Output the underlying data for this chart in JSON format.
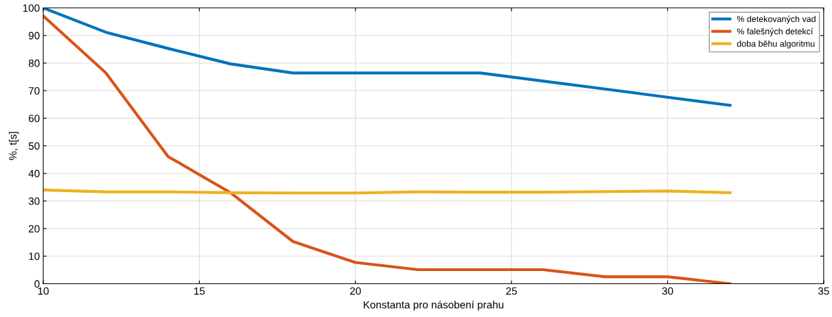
{
  "chart_data": {
    "type": "line",
    "xlabel": "Konstanta pro násobení prahu",
    "ylabel": "%, t[s]",
    "x": [
      10,
      12,
      14,
      16,
      18,
      20,
      22,
      24,
      26,
      28,
      30,
      32
    ],
    "series": [
      {
        "name": "% detekovaných vad",
        "color": "#0072bd",
        "values": [
          100,
          91.2,
          85.3,
          79.7,
          76.4,
          76.4,
          76.4,
          76.4,
          73.5,
          70.6,
          67.6,
          64.7
        ]
      },
      {
        "name": "% falešných detekcí",
        "color": "#d95319",
        "values": [
          97.1,
          76.5,
          46.1,
          33,
          15.3,
          7.7,
          5.1,
          5.1,
          5.1,
          2.5,
          2.5,
          0
        ]
      },
      {
        "name": "doba běhu algoritmu",
        "color": "#edb120",
        "values": [
          34,
          33.3,
          33.3,
          33,
          32.9,
          32.9,
          33.3,
          33.2,
          33.2,
          33.4,
          33.6,
          33
        ]
      }
    ],
    "xlim": [
      10,
      35
    ],
    "xticks": [
      10,
      15,
      20,
      25,
      30,
      35
    ],
    "ylim": [
      0,
      100
    ],
    "yticks": [
      0,
      10,
      20,
      30,
      40,
      50,
      60,
      70,
      80,
      90,
      100
    ],
    "grid": true,
    "legend": "top right",
    "marker": "none",
    "line_style": "solid"
  }
}
